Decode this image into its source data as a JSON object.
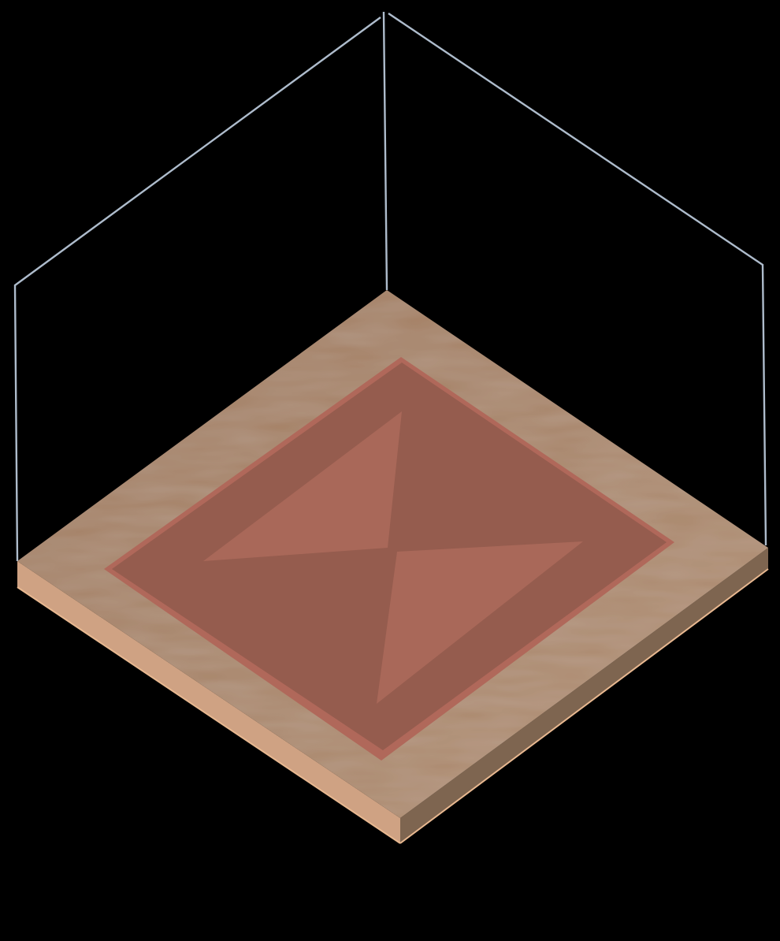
{
  "scene": {
    "background_color": "#000000",
    "wire_color": "#aebccc",
    "colors": {
      "floor_top": "#a07c60",
      "floor_top_light": "#b08e72",
      "floor_edge_front_left": "#cfa283",
      "floor_edge_front_right": "#7e6550",
      "floor_edge_highlight": "#e8b890",
      "rug_base": "#955c4e",
      "rug_border": "#b0685a",
      "rug_triangle": "#a96859"
    }
  }
}
